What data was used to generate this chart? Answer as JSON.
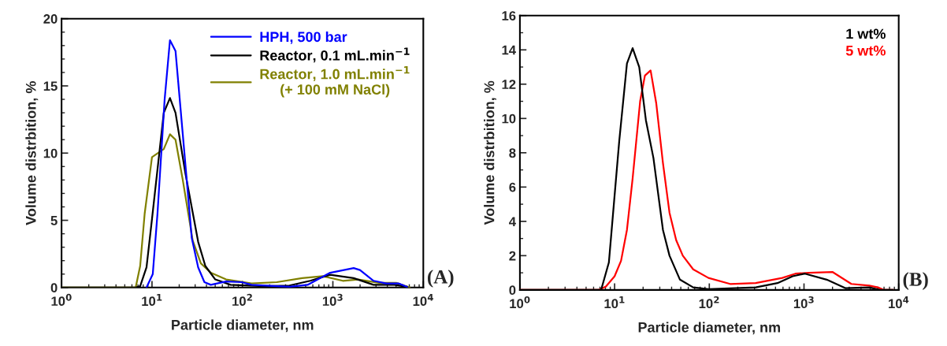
{
  "chart_data": [
    {
      "type": "line",
      "xlabel": "Particle diameter, nm",
      "ylabel": "Volume distrbition, %",
      "log": "x",
      "xlim": [
        1,
        10000
      ],
      "xticks": [
        {
          "value": 1,
          "label": "10$^{0}$"
        },
        {
          "value": 10,
          "label": "10$^{1}$"
        },
        {
          "value": 100,
          "label": "10$^{2}$"
        },
        {
          "value": 1000,
          "label": "10$^{3}$"
        },
        {
          "value": 10000,
          "label": "10$^{4}$"
        }
      ],
      "ylim": [
        0,
        20
      ],
      "yticks": [
        0,
        5,
        10,
        15,
        20
      ],
      "grid": false,
      "legend": "top right",
      "marker": "none",
      "line_style": "solid",
      "annotations": [
        "(A)"
      ],
      "series": [
        {
          "name": "HPH, 500 bar",
          "color": "#0000ff",
          "x": [
            8.7,
            10.2,
            11.5,
            13.8,
            15.8,
            18.2,
            21.9,
            27.5,
            32.4,
            38,
            44.7,
            66,
            98,
            126,
            331,
            525,
            933,
            1698,
            1995,
            2818,
            3890,
            5370,
            6607
          ],
          "values": [
            0,
            1.0,
            5.5,
            14,
            18.4,
            17.6,
            11.4,
            3.7,
            1.5,
            0.4,
            0.2,
            0.45,
            0.4,
            0.2,
            0.05,
            0.2,
            1.1,
            1.45,
            1.3,
            0.5,
            0.3,
            0.3,
            0.05
          ]
        },
        {
          "name": "Reactor, 0.1 mL.min$^{−1}$",
          "color": "#000000",
          "x": [
            1,
            6.6,
            7.4,
            8.7,
            10,
            13.5,
            15.8,
            18.2,
            23.4,
            32.4,
            38.9,
            50.1,
            74,
            174,
            331,
            562,
            933,
            1698,
            2818,
            4786,
            6607
          ],
          "values": [
            0,
            0,
            0.1,
            1.5,
            5.1,
            13.0,
            14.1,
            13.0,
            8.5,
            3.4,
            1.6,
            0.6,
            0.2,
            0.1,
            0.15,
            0.5,
            0.95,
            0.7,
            0.2,
            0.2,
            0.05
          ]
        },
        {
          "name": "Reactor, 1.0 mL.min$^{−1}$\n(+ 100 mM NaCl)",
          "color": "#808000",
          "x": [
            1,
            6.6,
            7.4,
            8.3,
            10,
            13.5,
            15.8,
            18.2,
            21.9,
            28.2,
            34.7,
            44.7,
            66,
            126,
            240,
            457,
            776,
            1288,
            1905,
            3236,
            5012,
            7079
          ],
          "values": [
            0,
            0,
            1.6,
            5.5,
            9.7,
            10.3,
            11.4,
            11.0,
            8.0,
            3.5,
            1.8,
            1.1,
            0.6,
            0.3,
            0.4,
            0.7,
            0.85,
            0.5,
            0.6,
            0.35,
            0.35,
            0
          ]
        }
      ]
    },
    {
      "type": "line",
      "xlabel": "Particle diameter, nm",
      "ylabel": "Volume distrbition, %",
      "log": "x",
      "xlim": [
        1,
        10000
      ],
      "xticks": [
        {
          "value": 1,
          "label": "10$^{0}$"
        },
        {
          "value": 10,
          "label": "10$^{1}$"
        },
        {
          "value": 100,
          "label": "10$^{2}$"
        },
        {
          "value": 1000,
          "label": "10$^{3}$"
        },
        {
          "value": 10000,
          "label": "10$^{4}$"
        }
      ],
      "ylim": [
        0,
        16
      ],
      "yticks": [
        0,
        2,
        4,
        6,
        8,
        10,
        12,
        14,
        16
      ],
      "grid": false,
      "legend": "top right",
      "marker": "none",
      "line_style": "solid",
      "annotations": [
        "(B)"
      ],
      "series": [
        {
          "name": "1 wt%",
          "color": "#000000",
          "x": [
            1,
            7.2,
            8.7,
            11.2,
            13.5,
            15.5,
            18.2,
            21.4,
            25.7,
            32.4,
            38,
            49,
            67.6,
            98,
            309,
            525,
            759,
            1023,
            1738,
            2754,
            4898,
            6310,
            8710
          ],
          "values": [
            0,
            0,
            1.6,
            8.7,
            13.2,
            14.1,
            13.0,
            9.9,
            7.7,
            3.5,
            2.0,
            0.6,
            0.15,
            0.05,
            0.15,
            0.4,
            0.8,
            0.95,
            0.6,
            0.1,
            0.15,
            0,
            0
          ]
        },
        {
          "name": "5 wt%",
          "color": "#ff0000",
          "x": [
            1,
            6.8,
            8.1,
            10,
            11.7,
            13.5,
            15.5,
            18.6,
            20.9,
            24,
            27.5,
            32.4,
            38,
            44.7,
            52.5,
            67.6,
            98,
            166,
            309,
            589,
            813,
            1122,
            1995,
            3162,
            4898,
            6026,
            6918,
            8710
          ],
          "values": [
            0,
            0,
            0.2,
            0.8,
            1.7,
            3.5,
            6.5,
            11.0,
            12.5,
            12.8,
            10.9,
            7.4,
            4.5,
            2.9,
            2.0,
            1.2,
            0.7,
            0.35,
            0.4,
            0.7,
            0.95,
            1.0,
            1.05,
            0.35,
            0.25,
            0.15,
            0,
            0
          ]
        }
      ]
    }
  ]
}
